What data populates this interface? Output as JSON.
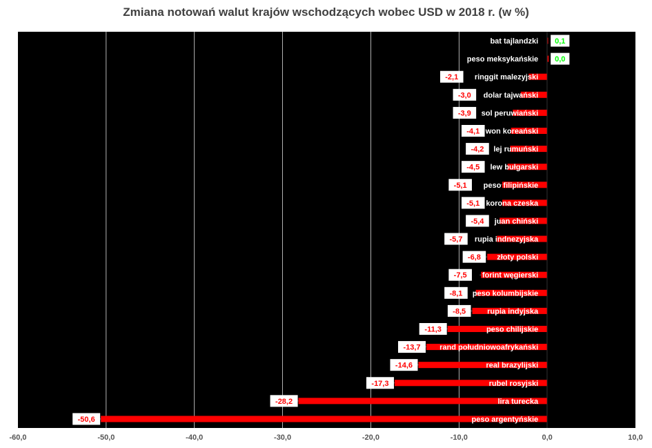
{
  "chart_data": {
    "type": "bar",
    "orientation": "horizontal",
    "title": "Zmiana notowań walut krajów wschodzących wobec USD w 2018 r. (w %)",
    "xlim": [
      -60,
      10
    ],
    "x_ticks": [
      "-60,0",
      "-50,0",
      "-40,0",
      "-30,0",
      "-20,0",
      "-10,0",
      "0,0",
      "10,0"
    ],
    "grid": true,
    "categories": [
      "bat tajlandzki",
      "peso meksykańskie",
      "ringgit malezyjski",
      "dolar tajwański",
      "sol peruwiański",
      "won koreański",
      "lej rumuński",
      "lew bułgarski",
      "peso filipińskie",
      "korona czeska",
      "juan chiński",
      "rupia indnezyjska",
      "złoty polski",
      "forint węgierski",
      "peso kolumbijskie",
      "rupia indyjska",
      "peso chilijskie",
      "rand południowoafrykański",
      "real brazylijski",
      "rubel rosyjski",
      "lira turecka",
      "peso argentyńskie"
    ],
    "values": [
      0.1,
      0.0,
      -2.1,
      -3.0,
      -3.9,
      -4.1,
      -4.2,
      -4.5,
      -5.1,
      -5.1,
      -5.4,
      -5.7,
      -6.8,
      -7.5,
      -8.1,
      -8.5,
      -11.3,
      -13.7,
      -14.6,
      -17.3,
      -28.2,
      -50.6
    ],
    "value_labels": [
      "0,1",
      "0,0",
      "-2,1",
      "-3,0",
      "-3,9",
      "-4,1",
      "-4,2",
      "-4,5",
      "-5,1",
      "-5,1",
      "-5,4",
      "-5,7",
      "-6,8",
      "-7,5",
      "-8,1",
      "-8,5",
      "-11,3",
      "-13,7",
      "-14,6",
      "-17,3",
      "-28,2",
      "-50,6"
    ],
    "colors": {
      "plot_bg": "#000000",
      "bar": "#ff0000",
      "negative_label": "#ff0000",
      "positive_label": "#00ff00",
      "gridline": "#ffffff",
      "category_label": "#ffffff"
    }
  }
}
